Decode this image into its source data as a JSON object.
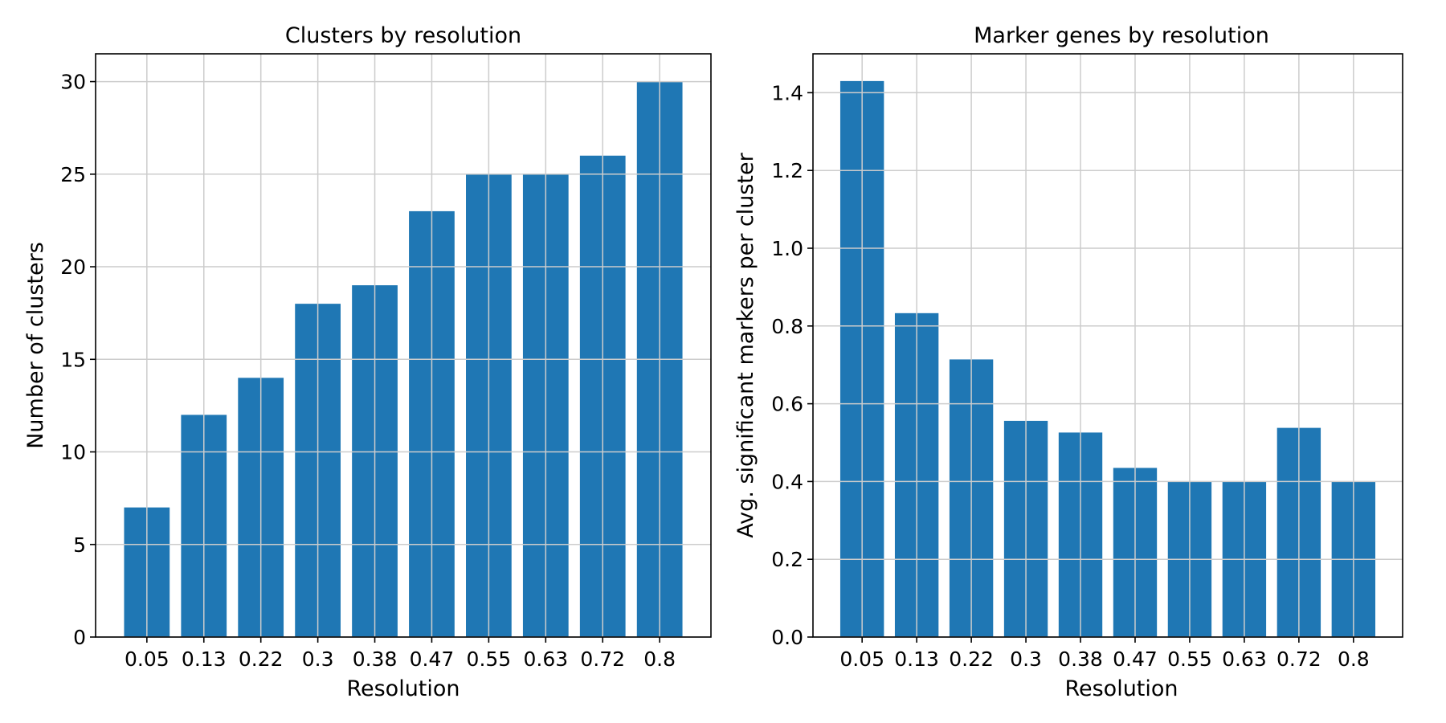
{
  "chart_data": [
    {
      "type": "bar",
      "title": "Clusters by resolution",
      "xlabel": "Resolution",
      "ylabel": "Number of clusters",
      "categories": [
        "0.05",
        "0.13",
        "0.22",
        "0.3",
        "0.38",
        "0.47",
        "0.55",
        "0.63",
        "0.72",
        "0.8"
      ],
      "values": [
        7,
        12,
        14,
        18,
        19,
        23,
        25,
        25,
        26,
        30
      ],
      "ylim": [
        0,
        31.5
      ],
      "yticks": [
        0,
        5,
        10,
        15,
        20,
        25,
        30
      ],
      "ytick_labels": [
        "0",
        "5",
        "10",
        "15",
        "20",
        "25",
        "30"
      ],
      "grid": true,
      "bar_color": "#1f77b4"
    },
    {
      "type": "bar",
      "title": "Marker genes by resolution",
      "xlabel": "Resolution",
      "ylabel": "Avg. significant markers per cluster",
      "categories": [
        "0.05",
        "0.13",
        "0.22",
        "0.3",
        "0.38",
        "0.47",
        "0.55",
        "0.63",
        "0.72",
        "0.8"
      ],
      "values": [
        1.43,
        0.833,
        0.714,
        0.556,
        0.526,
        0.435,
        0.4,
        0.4,
        0.538,
        0.4
      ],
      "ylim": [
        0,
        1.5
      ],
      "yticks": [
        0,
        0.2,
        0.4,
        0.6,
        0.8,
        1.0,
        1.2,
        1.4
      ],
      "ytick_labels": [
        "0.0",
        "0.2",
        "0.4",
        "0.6",
        "0.8",
        "1.0",
        "1.2",
        "1.4"
      ],
      "grid": true,
      "bar_color": "#1f77b4"
    }
  ]
}
